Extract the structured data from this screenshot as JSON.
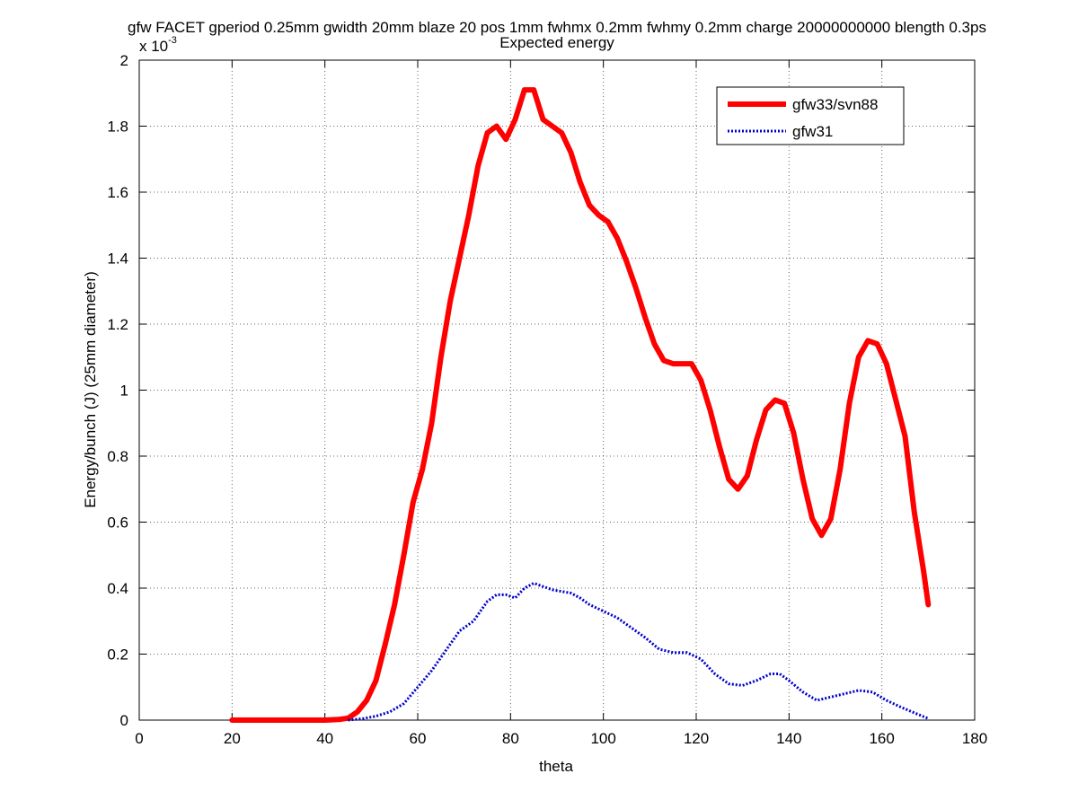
{
  "chart_data": {
    "type": "line",
    "title": "gfw FACET gperiod 0.25mm gwidth 20mm blaze 20 pos 1mm fwhmx 0.2mm fwhmy 0.2mm charge 20000000000 blength 0.3ps",
    "subtitle": "Expected energy",
    "xlabel": "theta",
    "ylabel": "Energy/bunch (J) (25mm diameter)",
    "exponent_label": "x 10",
    "exponent_power": "-3",
    "xlim": [
      0,
      180
    ],
    "ylim": [
      0,
      2
    ],
    "y_scale_factor": 0.001,
    "xticks": [
      0,
      20,
      40,
      60,
      80,
      100,
      120,
      140,
      160,
      180
    ],
    "yticks": [
      0,
      0.2,
      0.4,
      0.6,
      0.8,
      1,
      1.2,
      1.4,
      1.6,
      1.8,
      2
    ],
    "xtick_labels": [
      "0",
      "20",
      "40",
      "60",
      "80",
      "100",
      "120",
      "140",
      "160",
      "180"
    ],
    "ytick_labels": [
      "0",
      "0.2",
      "0.4",
      "0.6",
      "0.8",
      "1",
      "1.2",
      "1.4",
      "1.6",
      "1.8",
      "2"
    ],
    "grid": true,
    "legend_position": "top-right",
    "series": [
      {
        "name": "gfw33/svn88",
        "color": "#ff0000",
        "style": "solid",
        "x": [
          20,
          25,
          30,
          35,
          40,
          43,
          45,
          47,
          49,
          51,
          53,
          55,
          57,
          59,
          61,
          63,
          65,
          67,
          69,
          71,
          73,
          75,
          77,
          79,
          81,
          83,
          85,
          87,
          89,
          91,
          93,
          95,
          97,
          99,
          101,
          103,
          105,
          107,
          109,
          111,
          113,
          115,
          117,
          119,
          121,
          123,
          125,
          127,
          129,
          131,
          133,
          135,
          137,
          139,
          141,
          143,
          145,
          147,
          149,
          151,
          153,
          155,
          157,
          159,
          161,
          163,
          165,
          167,
          169,
          170
        ],
        "y": [
          0.0,
          0.0,
          0.0,
          0.0,
          0.0,
          0.002,
          0.006,
          0.025,
          0.06,
          0.12,
          0.23,
          0.35,
          0.5,
          0.66,
          0.76,
          0.9,
          1.1,
          1.27,
          1.4,
          1.53,
          1.68,
          1.78,
          1.8,
          1.76,
          1.82,
          1.91,
          1.91,
          1.82,
          1.8,
          1.78,
          1.72,
          1.63,
          1.56,
          1.53,
          1.51,
          1.46,
          1.39,
          1.31,
          1.22,
          1.14,
          1.09,
          1.08,
          1.08,
          1.08,
          1.03,
          0.94,
          0.83,
          0.73,
          0.7,
          0.74,
          0.85,
          0.94,
          0.97,
          0.96,
          0.87,
          0.73,
          0.61,
          0.56,
          0.61,
          0.76,
          0.96,
          1.1,
          1.15,
          1.14,
          1.08,
          0.97,
          0.86,
          0.63,
          0.45,
          0.35
        ]
      },
      {
        "name": "gfw31",
        "color": "#0000cc",
        "style": "dotted",
        "x": [
          45,
          48,
          51,
          54,
          57,
          60,
          63,
          66,
          69,
          72,
          75,
          77,
          79,
          81,
          83,
          85,
          87,
          89,
          91,
          93,
          95,
          97,
          100,
          103,
          106,
          109,
          112,
          115,
          118,
          121,
          124,
          127,
          130,
          133,
          136,
          138,
          140,
          143,
          146,
          149,
          152,
          155,
          158,
          161,
          164,
          167,
          170
        ],
        "y": [
          0.0,
          0.004,
          0.012,
          0.025,
          0.05,
          0.1,
          0.15,
          0.21,
          0.27,
          0.3,
          0.36,
          0.38,
          0.38,
          0.37,
          0.4,
          0.415,
          0.405,
          0.395,
          0.39,
          0.385,
          0.37,
          0.35,
          0.33,
          0.31,
          0.28,
          0.25,
          0.215,
          0.205,
          0.205,
          0.185,
          0.14,
          0.11,
          0.105,
          0.12,
          0.14,
          0.14,
          0.12,
          0.085,
          0.06,
          0.07,
          0.08,
          0.09,
          0.085,
          0.06,
          0.04,
          0.022,
          0.005
        ]
      }
    ]
  }
}
